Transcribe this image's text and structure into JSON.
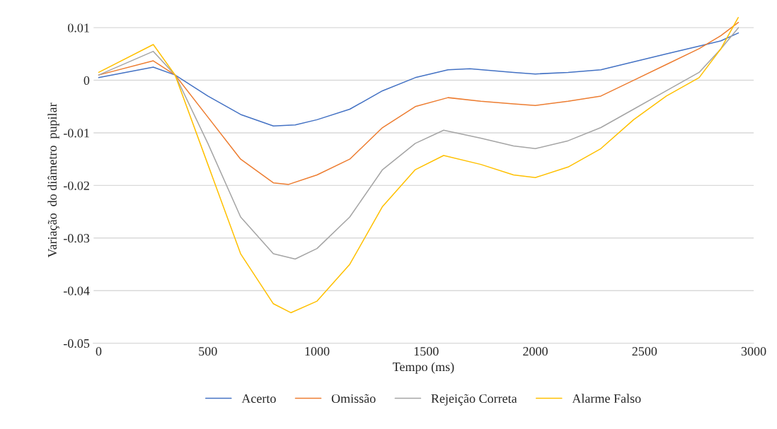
{
  "chart_data": {
    "type": "line",
    "xlabel": "Tempo (ms)",
    "ylabel": "Variação  do diâmetro  pupilar",
    "xlim": [
      -25,
      3000
    ],
    "xticks": [
      0,
      500,
      1000,
      1500,
      2000,
      2500,
      3000
    ],
    "ylim": [
      -0.05,
      0.012
    ],
    "yticks": [
      -0.05,
      -0.04,
      -0.03,
      -0.02,
      -0.01,
      0,
      0.01
    ],
    "grid": "y",
    "legend": "bottom",
    "marker": "none",
    "line_style": "solid",
    "series": [
      {
        "name": "Acerto",
        "color": "#4472c4",
        "x": [
          0,
          250,
          350,
          500,
          650,
          800,
          900,
          1000,
          1150,
          1300,
          1450,
          1600,
          1700,
          1900,
          2000,
          2150,
          2300,
          2450,
          2600,
          2750,
          2850,
          2930
        ],
        "values": [
          0.0005,
          0.0025,
          0.001,
          -0.003,
          -0.0065,
          -0.0087,
          -0.0085,
          -0.0075,
          -0.0055,
          -0.002,
          0.0005,
          0.002,
          0.0022,
          0.0015,
          0.0012,
          0.0015,
          0.002,
          0.0035,
          0.005,
          0.0065,
          0.0075,
          0.009
        ]
      },
      {
        "name": "Omissão",
        "color": "#ed7d31",
        "x": [
          0,
          250,
          350,
          500,
          650,
          800,
          870,
          1000,
          1150,
          1300,
          1450,
          1600,
          1750,
          1900,
          2000,
          2150,
          2300,
          2450,
          2600,
          2750,
          2850,
          2930
        ],
        "values": [
          0.001,
          0.0037,
          0.001,
          -0.007,
          -0.015,
          -0.0195,
          -0.0198,
          -0.018,
          -0.015,
          -0.009,
          -0.005,
          -0.0033,
          -0.004,
          -0.0045,
          -0.0048,
          -0.004,
          -0.003,
          0.0,
          0.003,
          0.006,
          0.0085,
          0.011
        ]
      },
      {
        "name": "Rejeição Correta",
        "color": "#a5a5a5",
        "x": [
          0,
          250,
          350,
          500,
          650,
          800,
          900,
          1000,
          1150,
          1300,
          1450,
          1580,
          1750,
          1900,
          2000,
          2150,
          2300,
          2450,
          2600,
          2750,
          2850,
          2930
        ],
        "values": [
          0.001,
          0.0055,
          0.001,
          -0.012,
          -0.026,
          -0.033,
          -0.034,
          -0.032,
          -0.026,
          -0.017,
          -0.012,
          -0.0095,
          -0.011,
          -0.0125,
          -0.013,
          -0.0115,
          -0.009,
          -0.0055,
          -0.002,
          0.0015,
          0.006,
          0.01
        ]
      },
      {
        "name": "Alarme Falso",
        "color": "#ffc000",
        "x": [
          0,
          250,
          350,
          500,
          650,
          800,
          880,
          1000,
          1150,
          1300,
          1450,
          1580,
          1750,
          1900,
          2000,
          2150,
          2300,
          2450,
          2600,
          2750,
          2850,
          2930
        ],
        "values": [
          0.0015,
          0.0068,
          0.001,
          -0.016,
          -0.033,
          -0.0425,
          -0.0442,
          -0.042,
          -0.035,
          -0.024,
          -0.017,
          -0.0143,
          -0.016,
          -0.018,
          -0.0185,
          -0.0165,
          -0.013,
          -0.0075,
          -0.003,
          0.0005,
          0.006,
          0.012
        ]
      }
    ]
  }
}
